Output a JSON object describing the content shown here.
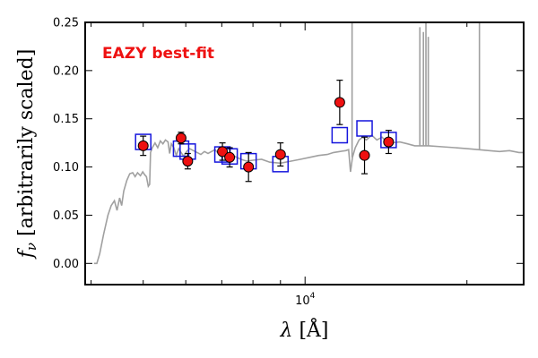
{
  "chart_data": {
    "type": "scatter",
    "title": "",
    "xlabel": "λ [Å]",
    "ylabel": "f_ν [arbitrarily scaled]",
    "ylabel_prefix": "f",
    "ylabel_sub": "ν",
    "ylabel_rest": " [arbitrarily scaled]",
    "xlabel_prefix": "λ ",
    "xlabel_rest": "[Å]",
    "xscale": "log",
    "xlim": [
      3900,
      25500
    ],
    "ylim": [
      -0.022,
      0.25
    ],
    "yticks": [
      0.0,
      0.05,
      0.1,
      0.15,
      0.2,
      0.25
    ],
    "ytick_labels": [
      "0.00",
      "0.05",
      "0.10",
      "0.15",
      "0.20",
      "0.25"
    ],
    "xtick_major": [
      10000
    ],
    "xtick_major_label_base": "10",
    "xtick_major_label_exp": "4",
    "xtick_minor": [
      4000,
      5000,
      6000,
      7000,
      8000,
      9000,
      20000
    ],
    "grid": false,
    "annotation": "EAZY best-fit",
    "colors": {
      "model": "#a0a0a0",
      "observed_fill": "#ee1111",
      "observed_edge": "#000000",
      "model_fill_marker": "#1515dd",
      "annotation": "#ee1111"
    },
    "series": [
      {
        "marker": "red-circle-errorbar",
        "points": [
          {
            "x": 5000,
            "y": 0.122,
            "err": 0.01
          },
          {
            "x": 5880,
            "y": 0.13,
            "err": 0.006
          },
          {
            "x": 6050,
            "y": 0.106,
            "err": 0.008
          },
          {
            "x": 7020,
            "y": 0.116,
            "err": 0.009
          },
          {
            "x": 7240,
            "y": 0.11,
            "err": 0.01
          },
          {
            "x": 7850,
            "y": 0.1,
            "err": 0.015
          },
          {
            "x": 9000,
            "y": 0.113,
            "err": 0.012
          },
          {
            "x": 11600,
            "y": 0.167,
            "err": 0.023
          },
          {
            "x": 12900,
            "y": 0.112,
            "err": 0.019
          },
          {
            "x": 14300,
            "y": 0.126,
            "err": 0.012
          }
        ]
      },
      {
        "marker": "blue-square",
        "points": [
          {
            "x": 5000,
            "y": 0.126
          },
          {
            "x": 5880,
            "y": 0.119
          },
          {
            "x": 6050,
            "y": 0.116
          },
          {
            "x": 7020,
            "y": 0.113
          },
          {
            "x": 7240,
            "y": 0.111
          },
          {
            "x": 7850,
            "y": 0.106
          },
          {
            "x": 9000,
            "y": 0.103
          },
          {
            "x": 11600,
            "y": 0.133
          },
          {
            "x": 12900,
            "y": 0.14
          },
          {
            "x": 14300,
            "y": 0.128
          }
        ]
      },
      {
        "marker": "gray-line",
        "points": [
          {
            "x": 4050,
            "y": 0.0
          },
          {
            "x": 4100,
            "y": 0.0
          },
          {
            "x": 4150,
            "y": 0.01
          },
          {
            "x": 4220,
            "y": 0.03
          },
          {
            "x": 4300,
            "y": 0.05
          },
          {
            "x": 4360,
            "y": 0.06
          },
          {
            "x": 4420,
            "y": 0.065
          },
          {
            "x": 4470,
            "y": 0.055
          },
          {
            "x": 4520,
            "y": 0.068
          },
          {
            "x": 4560,
            "y": 0.06
          },
          {
            "x": 4600,
            "y": 0.075
          },
          {
            "x": 4660,
            "y": 0.086
          },
          {
            "x": 4720,
            "y": 0.093
          },
          {
            "x": 4780,
            "y": 0.094
          },
          {
            "x": 4830,
            "y": 0.09
          },
          {
            "x": 4880,
            "y": 0.094
          },
          {
            "x": 4940,
            "y": 0.091
          },
          {
            "x": 4990,
            "y": 0.095
          },
          {
            "x": 5030,
            "y": 0.092
          },
          {
            "x": 5070,
            "y": 0.09
          },
          {
            "x": 5110,
            "y": 0.08
          },
          {
            "x": 5140,
            "y": 0.082
          },
          {
            "x": 5160,
            "y": 0.115
          },
          {
            "x": 5200,
            "y": 0.12
          },
          {
            "x": 5260,
            "y": 0.125
          },
          {
            "x": 5320,
            "y": 0.12
          },
          {
            "x": 5380,
            "y": 0.127
          },
          {
            "x": 5440,
            "y": 0.124
          },
          {
            "x": 5500,
            "y": 0.128
          },
          {
            "x": 5560,
            "y": 0.126
          },
          {
            "x": 5600,
            "y": 0.114
          },
          {
            "x": 5640,
            "y": 0.124
          },
          {
            "x": 5700,
            "y": 0.12
          },
          {
            "x": 5760,
            "y": 0.112
          },
          {
            "x": 5820,
            "y": 0.119
          },
          {
            "x": 5880,
            "y": 0.115
          },
          {
            "x": 5950,
            "y": 0.111
          },
          {
            "x": 6020,
            "y": 0.116
          },
          {
            "x": 6100,
            "y": 0.119
          },
          {
            "x": 6200,
            "y": 0.117
          },
          {
            "x": 6300,
            "y": 0.115
          },
          {
            "x": 6400,
            "y": 0.113
          },
          {
            "x": 6500,
            "y": 0.116
          },
          {
            "x": 6600,
            "y": 0.114
          },
          {
            "x": 6700,
            "y": 0.116
          },
          {
            "x": 6800,
            "y": 0.118
          },
          {
            "x": 6900,
            "y": 0.114
          },
          {
            "x": 7000,
            "y": 0.117
          },
          {
            "x": 7100,
            "y": 0.111
          },
          {
            "x": 7200,
            "y": 0.113
          },
          {
            "x": 7300,
            "y": 0.11
          },
          {
            "x": 7400,
            "y": 0.111
          },
          {
            "x": 7600,
            "y": 0.108
          },
          {
            "x": 7800,
            "y": 0.106
          },
          {
            "x": 8000,
            "y": 0.107
          },
          {
            "x": 8300,
            "y": 0.108
          },
          {
            "x": 8600,
            "y": 0.105
          },
          {
            "x": 9000,
            "y": 0.104
          },
          {
            "x": 9400,
            "y": 0.106
          },
          {
            "x": 9800,
            "y": 0.108
          },
          {
            "x": 10200,
            "y": 0.11
          },
          {
            "x": 10600,
            "y": 0.112
          },
          {
            "x": 11000,
            "y": 0.113
          },
          {
            "x": 11300,
            "y": 0.115
          },
          {
            "x": 11600,
            "y": 0.116
          },
          {
            "x": 11900,
            "y": 0.117
          },
          {
            "x": 12050,
            "y": 0.118
          },
          {
            "x": 12150,
            "y": 0.095
          },
          {
            "x": 12250,
            "y": 0.11
          },
          {
            "x": 12400,
            "y": 0.12
          },
          {
            "x": 12600,
            "y": 0.128
          },
          {
            "x": 12800,
            "y": 0.131
          },
          {
            "x": 13000,
            "y": 0.128
          },
          {
            "x": 13300,
            "y": 0.133
          },
          {
            "x": 13600,
            "y": 0.128
          },
          {
            "x": 13900,
            "y": 0.131
          },
          {
            "x": 14200,
            "y": 0.126
          },
          {
            "x": 14500,
            "y": 0.125
          },
          {
            "x": 15000,
            "y": 0.126
          },
          {
            "x": 15500,
            "y": 0.124
          },
          {
            "x": 16000,
            "y": 0.122
          },
          {
            "x": 17000,
            "y": 0.122
          },
          {
            "x": 18000,
            "y": 0.121
          },
          {
            "x": 19000,
            "y": 0.12
          },
          {
            "x": 20000,
            "y": 0.119
          },
          {
            "x": 21000,
            "y": 0.118
          },
          {
            "x": 22000,
            "y": 0.117
          },
          {
            "x": 23000,
            "y": 0.116
          },
          {
            "x": 24000,
            "y": 0.117
          },
          {
            "x": 25000,
            "y": 0.115
          },
          {
            "x": 25500,
            "y": 0.115
          }
        ],
        "emission_spikes": [
          {
            "x": 12230,
            "y_base": 0.11,
            "y_top": 0.26
          },
          {
            "x": 16350,
            "y_base": 0.122,
            "y_top": 0.245
          },
          {
            "x": 16600,
            "y_base": 0.122,
            "y_top": 0.24
          },
          {
            "x": 16780,
            "y_base": 0.122,
            "y_top": 0.255
          },
          {
            "x": 16950,
            "y_base": 0.122,
            "y_top": 0.235
          },
          {
            "x": 21100,
            "y_base": 0.118,
            "y_top": 0.26
          }
        ]
      }
    ]
  }
}
